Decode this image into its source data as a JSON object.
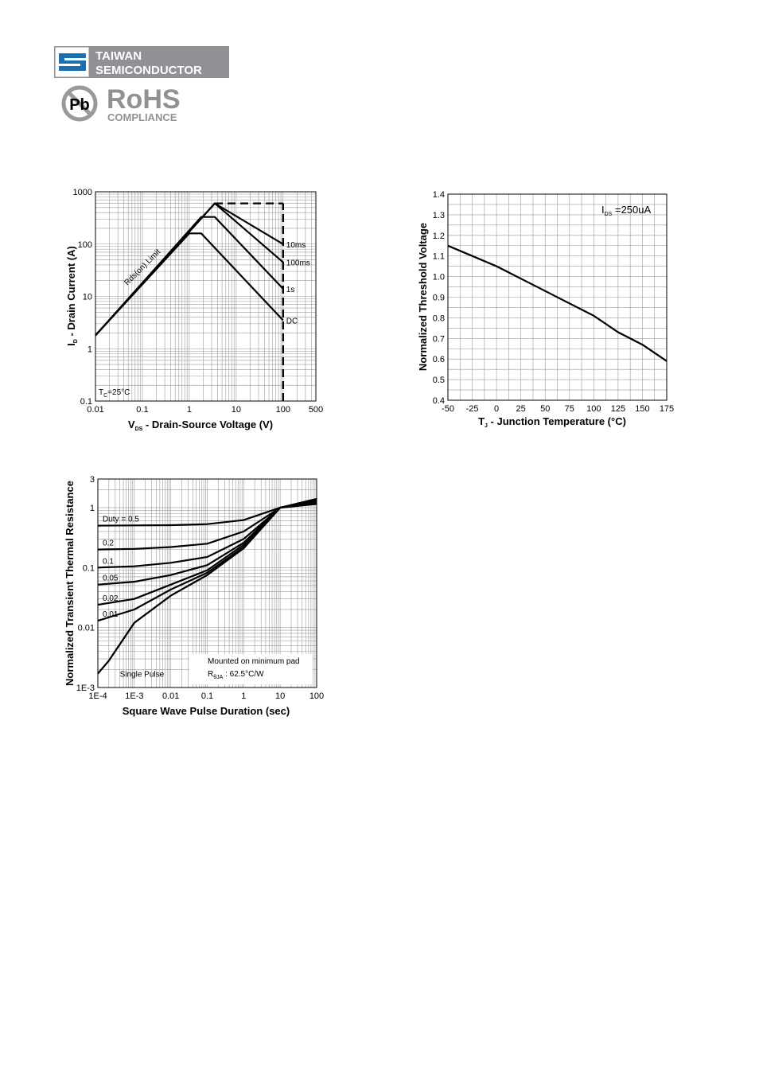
{
  "header": {
    "logo_line1": "TAIWAN",
    "logo_line2": "SEMICONDUCTOR",
    "pb_symbol": "Pb",
    "rohs_title": "RoHS",
    "rohs_sub": "COMPLIANCE",
    "logo_colors": {
      "gray": "#8f9194",
      "blue": "#1a6fb0",
      "white": "#ffffff"
    }
  },
  "chart_data": [
    {
      "type": "line",
      "scale": {
        "x": "log",
        "y": "log"
      },
      "xlim": [
        0.01,
        500
      ],
      "ylim": [
        0.1,
        1000
      ],
      "x_ticks": [
        "0.01",
        "0.1",
        "1",
        "10",
        "100",
        "500"
      ],
      "y_ticks": [
        "0.1",
        "1",
        "10",
        "100",
        "1000"
      ],
      "xlabel": {
        "main": "V",
        "sub": "DS",
        "rest": " - Drain-Source Voltage (V)"
      },
      "ylabel": {
        "main": "I",
        "sub": "D",
        "rest": " - Drain Current (A)"
      },
      "grid": true,
      "annotations": {
        "limit": "Rds(on) Limit",
        "condition_main": "T",
        "condition_sub": "C",
        "condition_rest": "=25°C"
      },
      "series": [
        {
          "name": "10ms",
          "x": [
            0.01,
            3.5,
            100
          ],
          "y": [
            1.8,
            600,
            100
          ]
        },
        {
          "name": "100ms",
          "x": [
            0.01,
            3.5,
            100
          ],
          "y": [
            1.8,
            600,
            45
          ]
        },
        {
          "name": "1s",
          "x": [
            0.01,
            1.8,
            3.5,
            100
          ],
          "y": [
            1.8,
            330,
            330,
            14
          ]
        },
        {
          "name": "DC",
          "x": [
            0.01,
            1,
            1.8,
            100
          ],
          "y": [
            1.8,
            160,
            160,
            3.5
          ]
        }
      ],
      "pulse_limit": {
        "x": [
          3.5,
          100
        ],
        "y": [
          600,
          600
        ]
      },
      "vds_limit": {
        "x": [
          100,
          100
        ],
        "y": [
          0.1,
          600
        ]
      }
    },
    {
      "type": "line",
      "xlim": [
        -50,
        175
      ],
      "ylim": [
        0.4,
        1.4
      ],
      "x_ticks": [
        "-50",
        "-25",
        "0",
        "25",
        "50",
        "75",
        "100",
        "125",
        "150",
        "175"
      ],
      "y_ticks": [
        "0.4",
        "0.5",
        "0.6",
        "0.7",
        "0.8",
        "0.9",
        "1.0",
        "1.1",
        "1.2",
        "1.3",
        "1.4"
      ],
      "xlabel": {
        "main": "T",
        "sub": "J",
        "rest": " - Junction Temperature (°C)"
      },
      "ylabel": {
        "main": "Normalized Threshold Voltage",
        "sub": "",
        "rest": ""
      },
      "grid": true,
      "annotations": {
        "condition_main": "I",
        "condition_sub": "DS",
        "condition_rest": " =250uA"
      },
      "series": [
        {
          "x": [
            -50,
            -25,
            0,
            25,
            50,
            75,
            100,
            125,
            150,
            175
          ],
          "y": [
            1.15,
            1.1,
            1.05,
            0.99,
            0.93,
            0.87,
            0.81,
            0.73,
            0.67,
            0.59
          ]
        }
      ]
    },
    {
      "type": "line",
      "scale": {
        "x": "log",
        "y": "log"
      },
      "xlim": [
        0.0001,
        100
      ],
      "ylim": [
        0.001,
        3
      ],
      "x_ticks": [
        "1E-4",
        "1E-3",
        "0.01",
        "0.1",
        "1",
        "10",
        "100"
      ],
      "y_ticks": [
        "1E-3",
        "0.01",
        "0.1",
        "1",
        "3"
      ],
      "xlabel": {
        "main": "Square Wave Pulse Duration (sec)",
        "sub": "",
        "rest": ""
      },
      "ylabel": {
        "main": "Normalized Transient Thermal Resistance",
        "sub": "",
        "rest": ""
      },
      "grid": true,
      "annotations": {
        "mount": "Mounted on minimum pad",
        "rth_main": "R",
        "rth_sub": "θJA",
        "rth_rest": " : 62.5°C/W"
      },
      "series": [
        {
          "name": "Duty = 0.5",
          "x": [
            0.0001,
            0.001,
            0.01,
            0.1,
            1,
            10,
            100
          ],
          "y": [
            0.5,
            0.505,
            0.51,
            0.53,
            0.62,
            1.0,
            1.15
          ]
        },
        {
          "name": "0.2",
          "x": [
            0.0001,
            0.001,
            0.01,
            0.1,
            1,
            10,
            100
          ],
          "y": [
            0.2,
            0.205,
            0.22,
            0.25,
            0.4,
            1.0,
            1.2
          ]
        },
        {
          "name": "0.1",
          "x": [
            0.0001,
            0.001,
            0.01,
            0.1,
            1,
            10,
            100
          ],
          "y": [
            0.1,
            0.105,
            0.12,
            0.15,
            0.3,
            1.0,
            1.25
          ]
        },
        {
          "name": "0.05",
          "x": [
            0.0001,
            0.001,
            0.01,
            0.1,
            1,
            10,
            100
          ],
          "y": [
            0.052,
            0.058,
            0.075,
            0.11,
            0.26,
            1.0,
            1.3
          ]
        },
        {
          "name": "0.02",
          "x": [
            0.0001,
            0.001,
            0.01,
            0.1,
            1,
            10,
            100
          ],
          "y": [
            0.024,
            0.03,
            0.052,
            0.09,
            0.24,
            1.0,
            1.35
          ]
        },
        {
          "name": "0.01",
          "x": [
            0.0001,
            0.001,
            0.01,
            0.1,
            1,
            10,
            100
          ],
          "y": [
            0.013,
            0.02,
            0.043,
            0.082,
            0.22,
            1.0,
            1.35
          ]
        },
        {
          "name": "Single Pulse",
          "x": [
            0.0001,
            0.0002,
            0.001,
            0.01,
            0.1,
            1,
            10,
            100
          ],
          "y": [
            0.0017,
            0.0028,
            0.012,
            0.034,
            0.075,
            0.21,
            1.0,
            1.4
          ]
        }
      ]
    }
  ]
}
